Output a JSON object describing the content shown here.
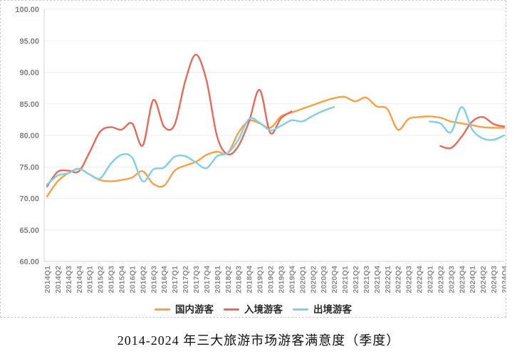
{
  "caption": {
    "text": "2014-2024 年三大旅游市场游客满意度（季度）"
  },
  "chart_data": {
    "type": "line",
    "title": "2014-2024 年三大旅游市场游客满意度（季度）",
    "ylabel": "",
    "xlabel": "",
    "ylim": [
      60,
      100
    ],
    "y_tick_step": 5,
    "y_tick_labels": [
      "60.00",
      "65.00",
      "70.00",
      "75.00",
      "80.00",
      "85.00",
      "90.00",
      "95.00",
      "100.00"
    ],
    "grid": true,
    "legend_position": "bottom",
    "x_labels": [
      "2014Q1",
      "2014Q2",
      "2014Q3",
      "2014Q4",
      "2015Q1",
      "2015Q2",
      "2015Q3",
      "2015Q4",
      "2016Q1",
      "2016Q2",
      "2016Q3",
      "2016Q4",
      "2017Q1",
      "2017Q2",
      "2017Q3",
      "2017Q4",
      "2018Q1",
      "2018Q2",
      "2018Q3",
      "2018Q4",
      "2019Q1",
      "2019Q2",
      "2019Q3",
      "2019Q4",
      "2020Q1",
      "2020Q2",
      "2020Q3",
      "2020Q4",
      "2021Q1",
      "2021Q2",
      "2021Q3",
      "2021Q4",
      "2022Q1",
      "2022Q2",
      "2022Q3",
      "2022Q4",
      "2023Q1",
      "2023Q2",
      "2023Q3",
      "2023Q4",
      "2024Q1",
      "2024Q2",
      "2024Q3",
      "2024Q4"
    ],
    "series": [
      {
        "name": "国内游客",
        "color": "#F9A144",
        "values": [
          70.3,
          72.7,
          74.0,
          74.7,
          73.8,
          72.9,
          72.7,
          72.9,
          73.3,
          74.3,
          72.3,
          72.0,
          74.4,
          75.2,
          75.8,
          76.9,
          77.4,
          77.2,
          80.4,
          82.3,
          81.9,
          81.2,
          83.0,
          83.6,
          84.2,
          84.8,
          85.4,
          85.9,
          86.1,
          85.4,
          86.0,
          84.6,
          84.2,
          80.9,
          82.6,
          82.9,
          83.0,
          82.8,
          82.2,
          81.9,
          81.6,
          81.3,
          81.2,
          81.2
        ]
      },
      {
        "name": "入境游客",
        "color": "#E96A58",
        "values": [
          71.9,
          74.2,
          74.4,
          74.3,
          77.3,
          80.6,
          81.3,
          80.9,
          81.9,
          78.4,
          85.6,
          81.4,
          81.7,
          88.6,
          92.8,
          88.7,
          79.8,
          77.0,
          78.3,
          82.2,
          87.2,
          80.4,
          82.7,
          83.8,
          null,
          null,
          null,
          null,
          null,
          null,
          null,
          null,
          null,
          null,
          null,
          null,
          null,
          78.3,
          78.0,
          79.8,
          82.2,
          82.9,
          81.8,
          81.4
        ]
      },
      {
        "name": "出境游客",
        "color": "#7FCFE9",
        "values": [
          72.2,
          73.6,
          74.0,
          74.7,
          73.8,
          73.2,
          75.5,
          76.9,
          76.5,
          72.7,
          74.6,
          74.9,
          76.6,
          76.7,
          75.7,
          74.8,
          76.7,
          77.2,
          79.3,
          82.6,
          82.0,
          80.8,
          81.5,
          82.4,
          82.2,
          83.1,
          83.9,
          84.5,
          null,
          null,
          null,
          null,
          null,
          null,
          null,
          null,
          82.2,
          81.9,
          80.5,
          84.5,
          80.9,
          79.5,
          79.3,
          80.0
        ]
      }
    ]
  }
}
